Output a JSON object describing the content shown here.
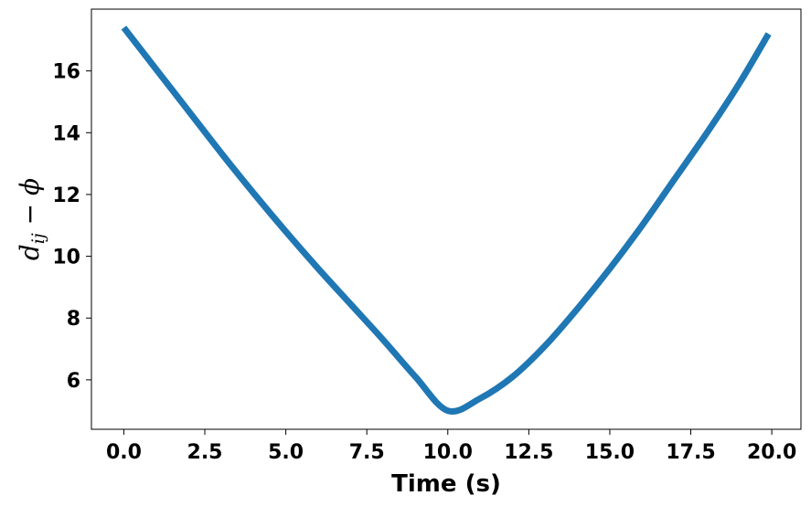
{
  "chart_data": {
    "type": "line",
    "title": "",
    "xlabel": "Time (s)",
    "ylabel": {
      "base": "d",
      "subscript": "ij",
      "operator": " − ",
      "symbol": "ϕ"
    },
    "xlim": [
      -1.0,
      20.9
    ],
    "ylim": [
      4.4,
      18.0
    ],
    "xticks": [
      "0.0",
      "2.5",
      "5.0",
      "7.5",
      "10.0",
      "12.5",
      "15.0",
      "17.5",
      "20.0"
    ],
    "yticks": [
      "6",
      "8",
      "10",
      "12",
      "14",
      "16"
    ],
    "grid": false,
    "legend": "none",
    "series": [
      {
        "color": "#1f77b4",
        "x": [
          0,
          1,
          2,
          3,
          4,
          5,
          6,
          7,
          8,
          9,
          10,
          11,
          12,
          13,
          14,
          15,
          16,
          17,
          18,
          19,
          19.9
        ],
        "y": [
          17.4,
          16.05,
          14.7,
          13.35,
          12.05,
          10.8,
          9.6,
          8.45,
          7.3,
          6.1,
          5.0,
          5.4,
          6.1,
          7.1,
          8.3,
          9.6,
          11.0,
          12.5,
          14.0,
          15.6,
          17.2
        ]
      }
    ]
  }
}
